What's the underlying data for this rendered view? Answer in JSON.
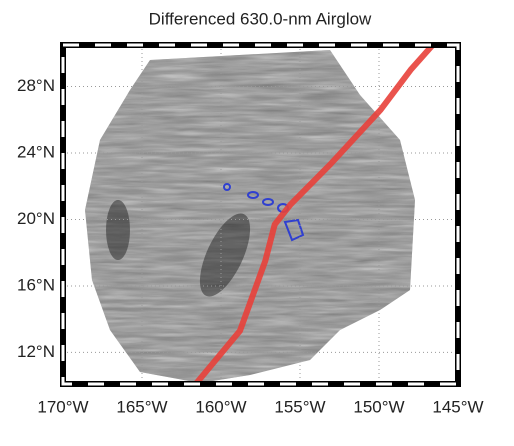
{
  "chart_data": {
    "type": "map",
    "title": "Differenced 630.0-nm Airglow",
    "xlim": [
      170,
      145
    ],
    "ylim": [
      10.1,
      30.5
    ],
    "xticks": [
      {
        "value": 170,
        "label": "170°W"
      },
      {
        "value": 165,
        "label": "165°W"
      },
      {
        "value": 160,
        "label": "160°W"
      },
      {
        "value": 155,
        "label": "155°W"
      },
      {
        "value": 150,
        "label": "150°W"
      },
      {
        "value": 145,
        "label": "145°W"
      }
    ],
    "yticks": [
      {
        "value": 12,
        "label": "12°N"
      },
      {
        "value": 16,
        "label": "16°N"
      },
      {
        "value": 20,
        "label": "20°N"
      },
      {
        "value": 24,
        "label": "24°N"
      },
      {
        "value": 28,
        "label": "28°N"
      }
    ],
    "grid": true,
    "series": [
      {
        "color": "#e8403a",
        "x": [
          161.6,
          158.8,
          157.2,
          156.6,
          155.6,
          153.1,
          149.9,
          148.0,
          146.6
        ],
        "values": [
          10.1,
          13.3,
          17.5,
          19.7,
          20.9,
          23.3,
          26.6,
          29.0,
          30.5
        ]
      }
    ]
  }
}
